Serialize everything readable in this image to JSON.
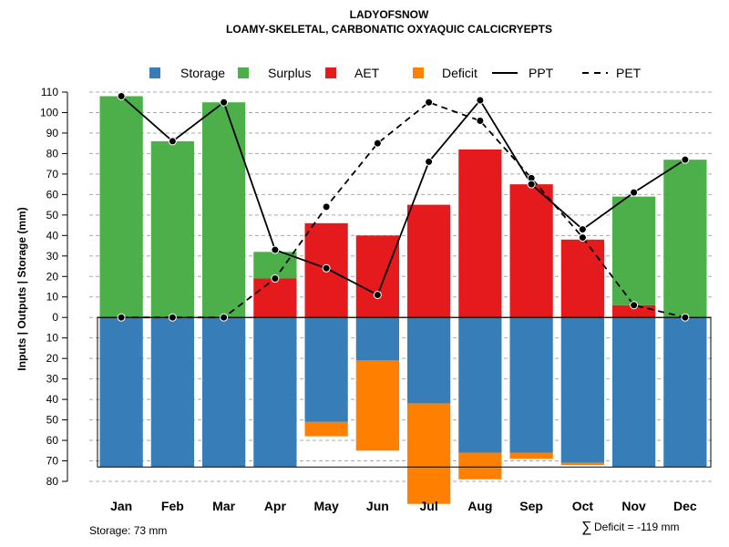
{
  "chart_data": {
    "type": "bar",
    "title": "LADYOFSNOW",
    "subtitle": "LOAMY-SKELETAL, CARBONATIC OXYAQUIC CALCICRYEPTS",
    "ylabel": "Inputs | Outputs | Storage    (mm)",
    "categories": [
      "Jan",
      "Feb",
      "Mar",
      "Apr",
      "May",
      "Jun",
      "Jul",
      "Aug",
      "Sep",
      "Oct",
      "Nov",
      "Dec"
    ],
    "ylim": [
      -80,
      110
    ],
    "yticks": [
      110,
      100,
      90,
      80,
      70,
      60,
      50,
      40,
      30,
      20,
      10,
      0,
      -10,
      -20,
      -30,
      -40,
      -50,
      -60,
      -70,
      -80
    ],
    "ytick_labels": [
      "110",
      "100",
      "90",
      "80",
      "70",
      "60",
      "50",
      "40",
      "30",
      "20",
      "10",
      "0",
      "10",
      "20",
      "30",
      "40",
      "50",
      "60",
      "70",
      "80"
    ],
    "grid": true,
    "legend_position": "top",
    "legend": [
      {
        "label": "Storage",
        "kind": "square",
        "color": "#377EB8"
      },
      {
        "label": "Surplus",
        "kind": "square",
        "color": "#4DAF4A"
      },
      {
        "label": "AET",
        "kind": "square",
        "color": "#E41A1C"
      },
      {
        "label": "Deficit",
        "kind": "square",
        "color": "#FF7F00"
      },
      {
        "label": "PPT",
        "kind": "solid-line",
        "color": "#000000"
      },
      {
        "label": "PET",
        "kind": "dashed-line",
        "color": "#000000"
      }
    ],
    "series": [
      {
        "name": "AET",
        "color": "#E41A1C",
        "values": [
          0,
          0,
          0,
          19,
          46,
          40,
          55,
          82,
          65,
          38,
          6,
          0
        ]
      },
      {
        "name": "Surplus",
        "color": "#4DAF4A",
        "values": [
          108,
          86,
          105,
          13,
          0,
          0,
          0,
          0,
          0,
          0,
          53,
          77
        ]
      },
      {
        "name": "Storage",
        "color": "#377EB8",
        "values": [
          73,
          73,
          73,
          73,
          51,
          21,
          42,
          66,
          66,
          71,
          73,
          73
        ]
      },
      {
        "name": "Deficit",
        "color": "#FF7F00",
        "values": [
          0,
          0,
          0,
          0,
          7,
          44,
          49,
          13,
          3,
          1,
          0,
          0
        ]
      },
      {
        "name": "PPT",
        "color": "#000000",
        "values": [
          108,
          86,
          105,
          33,
          24,
          11,
          76,
          106,
          65,
          43,
          61,
          77
        ]
      },
      {
        "name": "PET",
        "color": "#000000",
        "values": [
          0,
          0,
          0,
          19,
          54,
          85,
          105,
          96,
          68,
          39,
          6,
          0
        ]
      }
    ],
    "annotations": {
      "storage_note": "Storage: 73 mm",
      "deficit_symbol": "∑",
      "deficit_note": "Deficit = -119 mm"
    }
  }
}
